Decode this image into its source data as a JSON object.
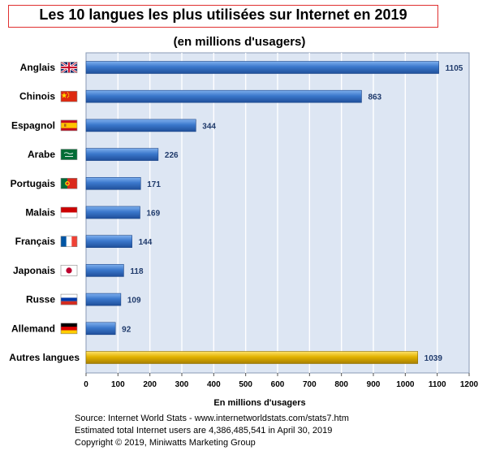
{
  "chart_data": {
    "type": "bar",
    "orientation": "horizontal",
    "title": "Les 10 langues les plus utilisées sur Internet en 2019",
    "subtitle": "(en millions d'usagers)",
    "xlabel": "En millions d'usagers",
    "ylabel": "",
    "xlim": [
      0,
      1200
    ],
    "xticks": [
      "0",
      "100",
      "200",
      "300",
      "400",
      "500",
      "600",
      "700",
      "800",
      "900",
      "1000",
      "1100",
      "1200"
    ],
    "grid": true,
    "categories": [
      "Anglais",
      "Chinois",
      "Espagnol",
      "Arabe",
      "Portugais",
      "Malais",
      "Français",
      "Japonais",
      "Russe",
      "Allemand",
      "Autres langues"
    ],
    "values": [
      1105,
      863,
      344,
      226,
      171,
      169,
      144,
      118,
      109,
      92,
      1039
    ],
    "value_labels": [
      "1105",
      "863",
      "344",
      "226",
      "171",
      "169",
      "144",
      "118",
      "109",
      "92",
      "1039"
    ],
    "flags": [
      "uk-flag-icon",
      "china-flag-icon",
      "spain-flag-icon",
      "saudi-arabia-flag-icon",
      "portugal-flag-icon",
      "malaysia-flag-icon",
      "france-flag-icon",
      "japan-flag-icon",
      "russia-flag-icon",
      "germany-flag-icon",
      ""
    ],
    "bar_colors": [
      "#2f6ec0",
      "#2f6ec0",
      "#2f6ec0",
      "#2f6ec0",
      "#2f6ec0",
      "#2f6ec0",
      "#2f6ec0",
      "#2f6ec0",
      "#2f6ec0",
      "#2f6ec0",
      "#e0b000"
    ],
    "plot_background": "#dde6f3",
    "value_label_color": "#1f3a6b"
  },
  "source": {
    "line1": "Source: Internet World Stats - www.internetworldstats.com/stats7.htm",
    "line2": "Estimated total Internet users are 4,386,485,541 in April 30, 2019",
    "line3": "Copyright ©  2019, Miniwatts Marketing Group"
  }
}
